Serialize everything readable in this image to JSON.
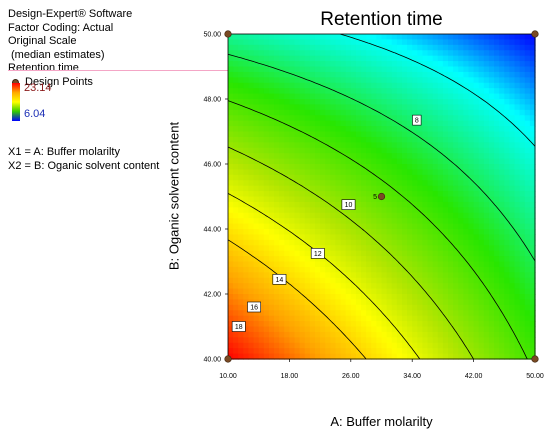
{
  "info": {
    "software": "Design-Expert® Software",
    "coding": "Factor Coding: Actual",
    "scale": "Original Scale",
    "estimates": "(median estimates)",
    "response": "Retention time",
    "design_points_label": "Design Points",
    "high_value": "23.14",
    "low_value": "6.04",
    "x1_def": "X1 = A: Buffer molarilty",
    "x2_def": "X2 = B: Oganic solvent content"
  },
  "chart_data": {
    "type": "contour",
    "title": "Retention time",
    "xlabel": "A: Buffer molarilty",
    "ylabel": "B: Oganic solvent content",
    "xlim": [
      10,
      50
    ],
    "ylim": [
      40,
      50
    ],
    "x_ticks": [
      "10.00",
      "18.00",
      "26.00",
      "34.00",
      "42.00",
      "50.00"
    ],
    "y_ticks": [
      "40.00",
      "42.00",
      "44.00",
      "46.00",
      "48.00",
      "50.00"
    ],
    "response_range": [
      6.04,
      23.14
    ],
    "contour_levels": [
      8,
      10,
      12,
      14,
      16,
      18
    ],
    "contour_labels": [
      {
        "level": 8,
        "x": 34.6,
        "y": 47.35
      },
      {
        "level": 10,
        "x": 25.7,
        "y": 44.75
      },
      {
        "level": 12,
        "x": 21.7,
        "y": 43.25
      },
      {
        "level": 14,
        "x": 16.7,
        "y": 42.45
      },
      {
        "level": 16,
        "x": 13.4,
        "y": 41.6
      },
      {
        "level": 18,
        "x": 11.4,
        "y": 41.0
      }
    ],
    "design_points": [
      {
        "x": 10,
        "y": 40
      },
      {
        "x": 10,
        "y": 50
      },
      {
        "x": 50,
        "y": 40
      },
      {
        "x": 50,
        "y": 50
      },
      {
        "x": 30,
        "y": 45,
        "label": "5"
      }
    ]
  }
}
